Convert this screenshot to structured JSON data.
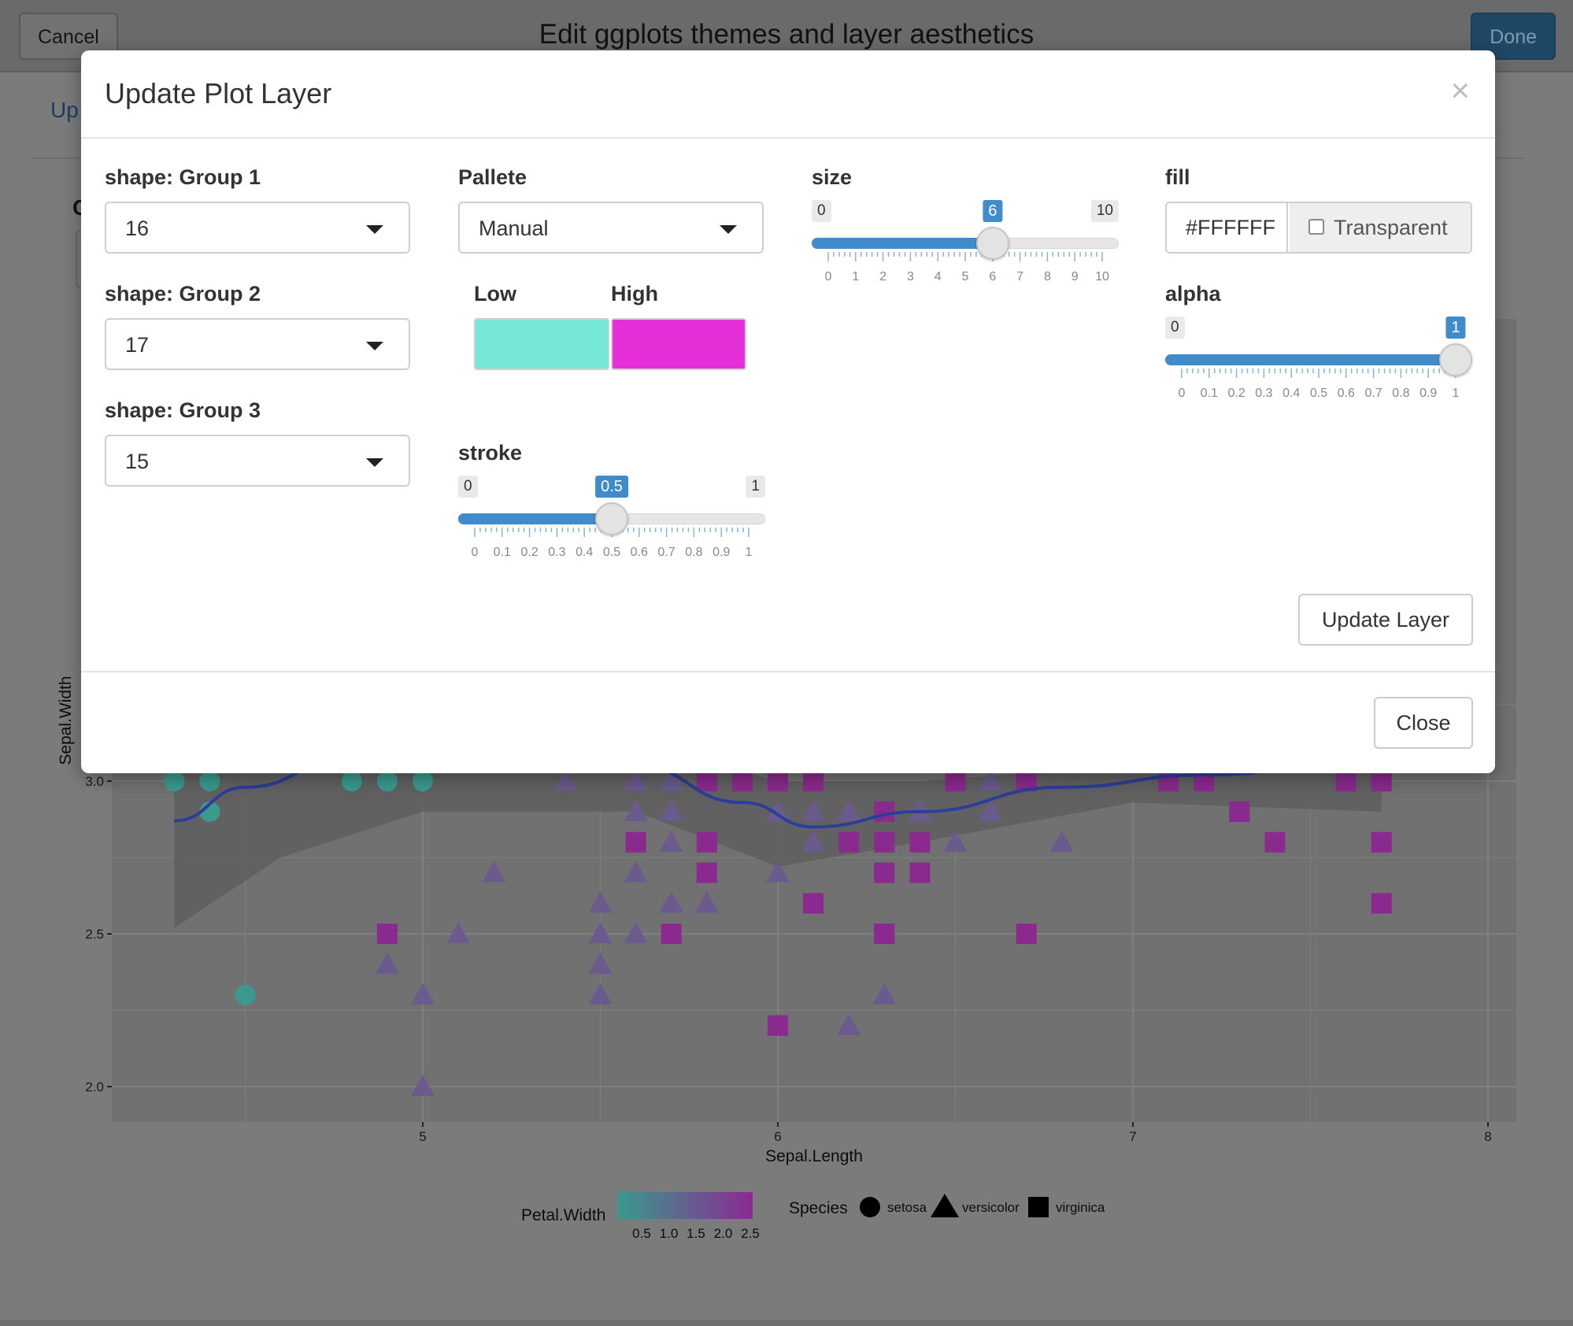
{
  "app": {
    "title": "Edit ggplots themes and layer aesthetics",
    "cancel_label": "Cancel",
    "done_label": "Done",
    "partial_link": "Up",
    "partial_glyph": "C"
  },
  "chart_data": {
    "type": "scatter",
    "xlabel": "Sepal.Length",
    "ylabel": "Sepal.Width",
    "xlim": [
      4.2,
      8.0
    ],
    "ylim": [
      1.9,
      3.3
    ],
    "x_ticks": [
      "5",
      "6",
      "7",
      "8"
    ],
    "y_ticks": [
      "2.0",
      "2.5",
      "3.0"
    ],
    "legend": {
      "color_title": "Petal.Width",
      "color_ticks": [
        "0.5",
        "1.0",
        "1.5",
        "2.0",
        "2.5"
      ],
      "color_low": "#3a9a8e",
      "color_high": "#8a2a90",
      "shape_title": "Species",
      "shape_entries": [
        "setosa",
        "versicolor",
        "virginica"
      ],
      "placement": "bottom"
    },
    "series": [
      {
        "name": "setosa",
        "shape": "circle",
        "points": [
          [
            4.3,
            3.0
          ],
          [
            4.4,
            3.0
          ],
          [
            4.4,
            2.9
          ],
          [
            4.8,
            3.0
          ],
          [
            4.9,
            3.0
          ],
          [
            5.0,
            3.0
          ],
          [
            4.5,
            2.3
          ]
        ]
      },
      {
        "name": "versicolor",
        "shape": "triangle",
        "points": [
          [
            5.4,
            3.0
          ],
          [
            5.6,
            3.0
          ],
          [
            5.7,
            3.0
          ],
          [
            5.6,
            2.9
          ],
          [
            5.7,
            2.9
          ],
          [
            5.7,
            2.8
          ],
          [
            6.0,
            2.9
          ],
          [
            6.1,
            2.9
          ],
          [
            6.2,
            2.9
          ],
          [
            6.1,
            2.8
          ],
          [
            6.4,
            2.9
          ],
          [
            6.6,
            2.9
          ],
          [
            6.6,
            3.0
          ],
          [
            6.5,
            2.8
          ],
          [
            6.8,
            2.8
          ],
          [
            5.2,
            2.7
          ],
          [
            5.6,
            2.7
          ],
          [
            5.8,
            2.7
          ],
          [
            6.0,
            2.7
          ],
          [
            5.5,
            2.6
          ],
          [
            5.7,
            2.6
          ],
          [
            5.8,
            2.6
          ],
          [
            5.1,
            2.5
          ],
          [
            5.5,
            2.5
          ],
          [
            5.6,
            2.5
          ],
          [
            6.3,
            2.5
          ],
          [
            4.9,
            2.4
          ],
          [
            5.5,
            2.4
          ],
          [
            5.0,
            2.3
          ],
          [
            5.5,
            2.3
          ],
          [
            6.3,
            2.3
          ],
          [
            6.0,
            2.2
          ],
          [
            6.2,
            2.2
          ],
          [
            5.0,
            2.0
          ]
        ]
      },
      {
        "name": "virginica",
        "shape": "square",
        "points": [
          [
            5.8,
            3.0
          ],
          [
            5.9,
            3.0
          ],
          [
            6.0,
            3.0
          ],
          [
            6.1,
            3.0
          ],
          [
            6.5,
            3.0
          ],
          [
            6.7,
            3.0
          ],
          [
            7.1,
            3.0
          ],
          [
            7.2,
            3.0
          ],
          [
            7.6,
            3.0
          ],
          [
            7.7,
            3.0
          ],
          [
            6.3,
            2.9
          ],
          [
            7.3,
            2.9
          ],
          [
            5.6,
            2.8
          ],
          [
            5.8,
            2.8
          ],
          [
            6.2,
            2.8
          ],
          [
            6.3,
            2.8
          ],
          [
            6.4,
            2.8
          ],
          [
            7.4,
            2.8
          ],
          [
            7.7,
            2.8
          ],
          [
            5.8,
            2.7
          ],
          [
            6.3,
            2.7
          ],
          [
            6.4,
            2.7
          ],
          [
            6.1,
            2.6
          ],
          [
            7.7,
            2.6
          ],
          [
            4.9,
            2.5
          ],
          [
            5.7,
            2.5
          ],
          [
            6.3,
            2.5
          ],
          [
            6.7,
            2.5
          ],
          [
            6.0,
            2.2
          ]
        ]
      }
    ],
    "smooth_curve": [
      [
        4.3,
        2.87
      ],
      [
        4.5,
        2.98
      ],
      [
        4.8,
        3.08
      ],
      [
        5.2,
        3.12
      ],
      [
        5.6,
        3.05
      ],
      [
        5.9,
        2.93
      ],
      [
        6.1,
        2.85
      ],
      [
        6.4,
        2.9
      ],
      [
        6.8,
        2.98
      ],
      [
        7.2,
        3.02
      ],
      [
        7.6,
        3.05
      ],
      [
        7.7,
        3.06
      ]
    ],
    "smooth_band_upper": [
      [
        4.3,
        3.05
      ],
      [
        4.6,
        3.12
      ],
      [
        5.0,
        3.18
      ],
      [
        5.6,
        3.12
      ],
      [
        6.0,
        3.0
      ],
      [
        6.4,
        3.0
      ],
      [
        7.0,
        3.05
      ],
      [
        7.7,
        3.2
      ]
    ],
    "smooth_band_lower": [
      [
        7.7,
        2.9
      ],
      [
        7.0,
        2.93
      ],
      [
        6.4,
        2.8
      ],
      [
        6.0,
        2.72
      ],
      [
        5.6,
        2.9
      ],
      [
        5.0,
        2.9
      ],
      [
        4.6,
        2.75
      ],
      [
        4.3,
        2.52
      ]
    ],
    "colors": {
      "setosa": "#3a9a8e",
      "versicolor": "#6a5a8e",
      "virginica": "#8a2a8e",
      "curve": "#2b3e9a",
      "band": "#5e5e5e",
      "panel": "#717171"
    }
  },
  "modal": {
    "title": "Update Plot Layer",
    "close_x": "×",
    "shape_group1": {
      "label": "shape: Group 1",
      "value": "16"
    },
    "shape_group2": {
      "label": "shape: Group 2",
      "value": "17"
    },
    "shape_group3": {
      "label": "shape: Group 3",
      "value": "15"
    },
    "palette": {
      "label": "Pallete",
      "value": "Manual"
    },
    "low": {
      "label": "Low",
      "color": "#76e8d8"
    },
    "high": {
      "label": "High",
      "color": "#e530da"
    },
    "stroke": {
      "label": "stroke",
      "min": "0",
      "max": "1",
      "value": "0.5",
      "fraction": 0.5,
      "ticks": [
        "0",
        "0.1",
        "0.2",
        "0.3",
        "0.4",
        "0.5",
        "0.6",
        "0.7",
        "0.8",
        "0.9",
        "1"
      ]
    },
    "size": {
      "label": "size",
      "min": "0",
      "max": "10",
      "value": "6",
      "fraction": 0.6,
      "ticks": [
        "0",
        "1",
        "2",
        "3",
        "4",
        "5",
        "6",
        "7",
        "8",
        "9",
        "10"
      ]
    },
    "fill": {
      "label": "fill",
      "value": "#FFFFFF",
      "transparent_label": "Transparent",
      "transparent_checked": false
    },
    "alpha": {
      "label": "alpha",
      "min": "0",
      "max": "1",
      "value": "1",
      "fraction": 1.0,
      "ticks": [
        "0",
        "0.1",
        "0.2",
        "0.3",
        "0.4",
        "0.5",
        "0.6",
        "0.7",
        "0.8",
        "0.9",
        "1"
      ]
    },
    "update_layer_label": "Update Layer",
    "close_label": "Close"
  }
}
